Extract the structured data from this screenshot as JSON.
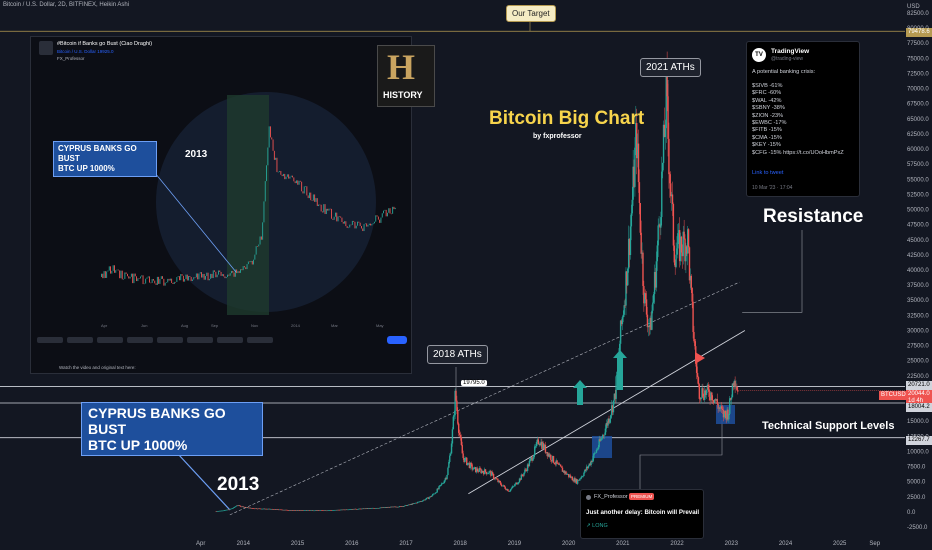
{
  "header": {
    "symbol": "Bitcoin / U.S. Dollar, 2D, BITFINEX, Heikin Ashi"
  },
  "chart_data": {
    "type": "candlestick",
    "title": "Bitcoin Big Chart",
    "subtitle": "by fxprofessor",
    "x_ticks": [
      "Apr",
      "2014",
      "2015",
      "2016",
      "2017",
      "2018",
      "2019",
      "2020",
      "2021",
      "2022",
      "2023",
      "2024",
      "2025",
      "Sep"
    ],
    "y_currency": "USD",
    "y_ticks": [
      "82500.0",
      "80000.0",
      "77500.0",
      "75000.0",
      "72500.0",
      "70000.0",
      "67500.0",
      "65000.0",
      "62500.0",
      "60000.0",
      "57500.0",
      "55000.0",
      "52500.0",
      "50000.0",
      "47500.0",
      "45000.0",
      "42500.0",
      "40000.0",
      "37500.0",
      "35000.0",
      "32500.0",
      "30000.0",
      "27500.0",
      "25000.0",
      "22500.0",
      "20000.0",
      "17500.0",
      "15000.0",
      "12500.0",
      "10000.0",
      "7500.0",
      "5000.0",
      "2500.0",
      "0.0",
      "-2500.0"
    ],
    "ylim": [
      -2500,
      82500
    ],
    "price_path": [
      [
        2013.55,
        120
      ],
      [
        2013.85,
        600
      ],
      [
        2013.93,
        1100
      ],
      [
        2014.2,
        600
      ],
      [
        2014.6,
        450
      ],
      [
        2015.0,
        250
      ],
      [
        2015.6,
        250
      ],
      [
        2016.0,
        430
      ],
      [
        2016.5,
        650
      ],
      [
        2017.0,
        950
      ],
      [
        2017.5,
        2500
      ],
      [
        2017.8,
        6000
      ],
      [
        2017.96,
        19795
      ],
      [
        2018.1,
        9000
      ],
      [
        2018.3,
        7000
      ],
      [
        2018.6,
        6500
      ],
      [
        2018.95,
        3500
      ],
      [
        2019.5,
        12000
      ],
      [
        2019.9,
        7200
      ],
      [
        2020.2,
        5000
      ],
      [
        2020.6,
        11000
      ],
      [
        2020.9,
        19000
      ],
      [
        2021.0,
        29000
      ],
      [
        2021.3,
        63000
      ],
      [
        2021.45,
        35000
      ],
      [
        2021.55,
        30000
      ],
      [
        2021.85,
        68700
      ],
      [
        2022.0,
        43000
      ],
      [
        2022.25,
        45000
      ],
      [
        2022.45,
        20000
      ],
      [
        2022.7,
        19500
      ],
      [
        2022.9,
        16000
      ],
      [
        2023.0,
        16500
      ],
      [
        2023.1,
        23000
      ],
      [
        2023.17,
        20044
      ]
    ],
    "horizontal_levels": [
      {
        "label": "79478.6",
        "price": 79478.6,
        "color": "#b59a51"
      },
      {
        "label": "20721.0",
        "price": 20721.0,
        "color": "#d1d4dc"
      },
      {
        "label": "18004.2",
        "price": 18004.2,
        "color": "#d1d4dc"
      },
      {
        "label": "12267.7",
        "price": 12267.7,
        "color": "#d1d4dc"
      }
    ],
    "current_price": {
      "symbol": "BTCUSD",
      "label": "20044.0",
      "countdown": "1d 4h"
    },
    "annotations": {
      "target": "Our Target",
      "ath_2021": "2021 ATHs",
      "ath_2018": "2018 ATHs",
      "ath_2018_value": "19795.0",
      "resistance": "Resistance",
      "support": "Technical Support Levels",
      "cyprus_line1": "CYPRUS BANKS GO BUST",
      "cyprus_line2": "BTC UP 1000%",
      "year_2013": "2013"
    }
  },
  "tweet": {
    "name": "TradingView",
    "handle": "@trading-view",
    "headline": "A potential banking crisis:",
    "lines": [
      "$SIVB -61%",
      "$FRC -60%",
      "$WAL -42%",
      "$SBNY -38%",
      "$ZION -23%",
      "$EWBC -17%",
      "$FITB -15%",
      "$CMA -15%",
      "$KEY -15%",
      "$CFG -15% https://t.co/UOoHbmPxZ"
    ],
    "link": "Link to tweet",
    "date": "10 Mar '23 · 17:04"
  },
  "inset": {
    "title": "#Bitcoin if Banks go Bust (Ciao Draghi)",
    "meta": "Bitcoin / U.S. Dollar  19925.0",
    "author": "FX_Professor",
    "chart_header": "Bitcoin / U.S. Dollar · 1D · BITFINEX · Heikin Ashi",
    "year": "2013",
    "cyprus_line1": "CYPRUS BANKS GO BUST",
    "cyprus_line2": "BTC UP 1000%",
    "history": "HISTORY",
    "footer": "Watch the video and original text here:",
    "x_ticks": [
      "Apr",
      "Jun",
      "Aug",
      "Sep",
      "Nov",
      "2014",
      "Mar",
      "May"
    ]
  },
  "post": {
    "author": "FX_Professor",
    "badge": "PREMIUM",
    "title": "Just another delay: Bitcoin will Prevail",
    "tag": "LONG"
  },
  "colors": {
    "background": "#131722",
    "up": "#26a69a",
    "down": "#ef5350",
    "title": "#f7d44c",
    "level": "#b59a51"
  }
}
